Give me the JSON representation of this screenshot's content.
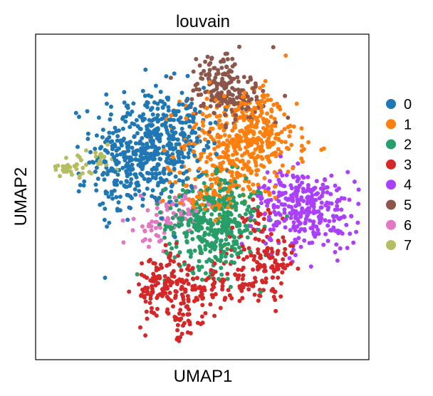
{
  "chart_data": {
    "type": "scatter",
    "title": "louvain",
    "xlabel": "UMAP1",
    "ylabel": "UMAP2",
    "xlim": [
      0,
      10
    ],
    "ylim": [
      0,
      10
    ],
    "grid": false,
    "ticks": false,
    "legend": "right",
    "series": [
      {
        "name": "0",
        "color": "#1f77b4",
        "clusters": [
          {
            "center": [
              3.4,
              6.5
            ],
            "spread": [
              0.85,
              0.95
            ],
            "count": 420
          },
          {
            "center": [
              2.7,
              5.6
            ],
            "spread": [
              0.6,
              0.6
            ],
            "count": 90
          },
          {
            "center": [
              4.2,
              7.0
            ],
            "spread": [
              0.5,
              0.5
            ],
            "count": 70
          }
        ]
      },
      {
        "name": "1",
        "color": "#ff7f0e",
        "clusters": [
          {
            "center": [
              6.1,
              6.6
            ],
            "spread": [
              0.85,
              0.8
            ],
            "count": 400
          },
          {
            "center": [
              5.2,
              5.0
            ],
            "spread": [
              0.5,
              0.4
            ],
            "count": 60
          },
          {
            "center": [
              6.8,
              7.3
            ],
            "spread": [
              0.5,
              0.5
            ],
            "count": 70
          }
        ]
      },
      {
        "name": "2",
        "color": "#279e68",
        "clusters": [
          {
            "center": [
              5.3,
              4.1
            ],
            "spread": [
              0.7,
              0.7
            ],
            "count": 360
          },
          {
            "center": [
              5.6,
              5.0
            ],
            "spread": [
              0.5,
              0.35
            ],
            "count": 60
          }
        ]
      },
      {
        "name": "3",
        "color": "#d62728",
        "clusters": [
          {
            "center": [
              3.7,
              2.2
            ],
            "spread": [
              0.35,
              0.55
            ],
            "count": 90
          },
          {
            "center": [
              4.6,
              2.2
            ],
            "spread": [
              0.6,
              0.45
            ],
            "count": 110
          },
          {
            "center": [
              6.4,
              2.6
            ],
            "spread": [
              0.55,
              0.45
            ],
            "count": 80
          },
          {
            "center": [
              7.1,
              3.1
            ],
            "spread": [
              0.35,
              0.5
            ],
            "count": 60
          },
          {
            "center": [
              4.5,
              1.0
            ],
            "spread": [
              0.15,
              0.45
            ],
            "count": 25
          },
          {
            "center": [
              6.5,
              4.2
            ],
            "spread": [
              0.35,
              0.4
            ],
            "count": 30
          }
        ]
      },
      {
        "name": "4",
        "color": "#aa40fc",
        "clusters": [
          {
            "center": [
              8.2,
              4.6
            ],
            "spread": [
              0.75,
              0.6
            ],
            "count": 280
          },
          {
            "center": [
              7.3,
              5.2
            ],
            "spread": [
              0.35,
              0.35
            ],
            "count": 30
          }
        ]
      },
      {
        "name": "5",
        "color": "#8c564b",
        "clusters": [
          {
            "center": [
              5.5,
              8.4
            ],
            "spread": [
              0.45,
              0.55
            ],
            "count": 150
          },
          {
            "center": [
              6.3,
              7.9
            ],
            "spread": [
              0.5,
              0.35
            ],
            "count": 50
          }
        ]
      },
      {
        "name": "6",
        "color": "#e377c2",
        "clusters": [
          {
            "center": [
              3.7,
              4.2
            ],
            "spread": [
              0.35,
              0.35
            ],
            "count": 60
          },
          {
            "center": [
              4.6,
              4.7
            ],
            "spread": [
              0.35,
              0.3
            ],
            "count": 30
          }
        ]
      },
      {
        "name": "7",
        "color": "#b5bd61",
        "clusters": [
          {
            "center": [
              1.1,
              5.9
            ],
            "spread": [
              0.35,
              0.15
            ],
            "count": 30
          },
          {
            "center": [
              1.8,
              6.1
            ],
            "spread": [
              0.35,
              0.25
            ],
            "count": 20
          }
        ]
      }
    ]
  }
}
